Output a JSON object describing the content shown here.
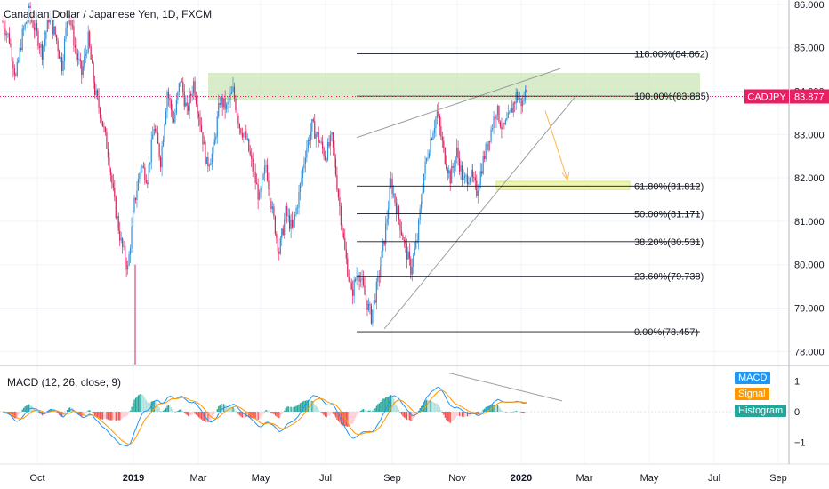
{
  "title": "Canadian Dollar / Japanese Yen, 1D, FXCM",
  "symbol_label": "CADJPY",
  "price_label": "83.877",
  "macd_label": "MACD (12, 26, close, 9)",
  "macd_legend": [
    "MACD",
    "Signal",
    "Histogram"
  ],
  "colors": {
    "up": "#2f8fd8",
    "down": "#d6245f",
    "zone": "#c8e4b4",
    "target": "#eef5b0",
    "macd_line": "#2196f3",
    "signal_line": "#ff9800",
    "hist_up": "#26a69a",
    "hist_down": "#ef5350",
    "price_tag": "#e91e63"
  },
  "chart_data": {
    "type": "candlestick",
    "title": "Canadian Dollar / Japanese Yen, 1D, FXCM",
    "current_price": 83.877,
    "y_ticks": [
      78.0,
      79.0,
      80.0,
      81.0,
      82.0,
      83.0,
      84.0,
      85.0,
      86.0
    ],
    "y_tick_labels": [
      "78.000",
      "79.000",
      "80.000",
      "81.000",
      "82.000",
      "83.000",
      "84.000",
      "85.000",
      "86.000"
    ],
    "ylim": [
      77.7,
      86.1
    ],
    "x_tick_labels": [
      "Oct",
      "2019",
      "Mar",
      "May",
      "Jul",
      "Sep",
      "Nov",
      "2020",
      "Mar",
      "May",
      "Jul",
      "Sep"
    ],
    "close_path": [
      [
        0,
        85.6
      ],
      [
        5,
        85.2
      ],
      [
        10,
        84.3
      ],
      [
        15,
        85.3
      ],
      [
        20,
        85.8
      ],
      [
        25,
        85.4
      ],
      [
        30,
        84.9
      ],
      [
        35,
        85.7
      ],
      [
        40,
        85.3
      ],
      [
        45,
        84.6
      ],
      [
        50,
        85.9
      ],
      [
        55,
        85.0
      ],
      [
        60,
        84.4
      ],
      [
        65,
        85.2
      ],
      [
        70,
        84.0
      ],
      [
        75,
        83.4
      ],
      [
        80,
        82.6
      ],
      [
        85,
        81.4
      ],
      [
        90,
        80.5
      ],
      [
        95,
        79.9
      ],
      [
        100,
        81.4
      ],
      [
        105,
        82.3
      ],
      [
        110,
        82.0
      ],
      [
        115,
        83.2
      ],
      [
        120,
        82.4
      ],
      [
        125,
        84.0
      ],
      [
        130,
        83.3
      ],
      [
        135,
        84.3
      ],
      [
        140,
        83.5
      ],
      [
        145,
        84.2
      ],
      [
        150,
        83.3
      ],
      [
        155,
        82.3
      ],
      [
        160,
        82.6
      ],
      [
        165,
        83.8
      ],
      [
        170,
        83.6
      ],
      [
        175,
        84.0
      ],
      [
        180,
        83.2
      ],
      [
        185,
        82.9
      ],
      [
        190,
        82.2
      ],
      [
        195,
        81.5
      ],
      [
        200,
        82.3
      ],
      [
        205,
        81.2
      ],
      [
        210,
        80.3
      ],
      [
        215,
        81.2
      ],
      [
        220,
        80.8
      ],
      [
        225,
        81.6
      ],
      [
        230,
        82.6
      ],
      [
        235,
        83.2
      ],
      [
        240,
        82.9
      ],
      [
        245,
        82.5
      ],
      [
        250,
        82.9
      ],
      [
        255,
        81.6
      ],
      [
        260,
        80.3
      ],
      [
        265,
        79.3
      ],
      [
        270,
        79.9
      ],
      [
        275,
        79.3
      ],
      [
        280,
        78.8
      ],
      [
        285,
        79.6
      ],
      [
        290,
        80.6
      ],
      [
        295,
        81.9
      ],
      [
        300,
        81.2
      ],
      [
        305,
        80.5
      ],
      [
        310,
        79.9
      ],
      [
        315,
        80.6
      ],
      [
        320,
        82.1
      ],
      [
        325,
        82.9
      ],
      [
        330,
        83.5
      ],
      [
        335,
        82.6
      ],
      [
        340,
        82.0
      ],
      [
        345,
        82.6
      ],
      [
        350,
        81.9
      ],
      [
        355,
        82.1
      ],
      [
        360,
        81.7
      ],
      [
        365,
        82.4
      ],
      [
        370,
        83.0
      ],
      [
        375,
        83.6
      ],
      [
        380,
        83.1
      ],
      [
        385,
        83.4
      ],
      [
        390,
        83.9
      ],
      [
        395,
        83.7
      ],
      [
        398,
        84.1
      ]
    ],
    "fibonacci": [
      {
        "label": "118.00%(84.862)",
        "value": 84.862
      },
      {
        "label": "100.00%(83.885)",
        "value": 83.885
      },
      {
        "label": "61.80%(81.812)",
        "value": 81.812
      },
      {
        "label": "50.00%(81.171)",
        "value": 81.171
      },
      {
        "label": "38.20%(80.531)",
        "value": 80.531
      },
      {
        "label": "23.60%(79.738)",
        "value": 79.738
      },
      {
        "label": "0.00%(78.457)",
        "value": 78.457
      }
    ],
    "resistance_zone": [
      83.79,
      84.42
    ],
    "target_zone": [
      81.73,
      81.92
    ],
    "macd_y_ticks": [
      1,
      0,
      -1
    ],
    "macd_y_tick_labels": [
      "1",
      "0",
      "−1"
    ],
    "macd_ylim": [
      -1.7,
      1.5
    ]
  }
}
